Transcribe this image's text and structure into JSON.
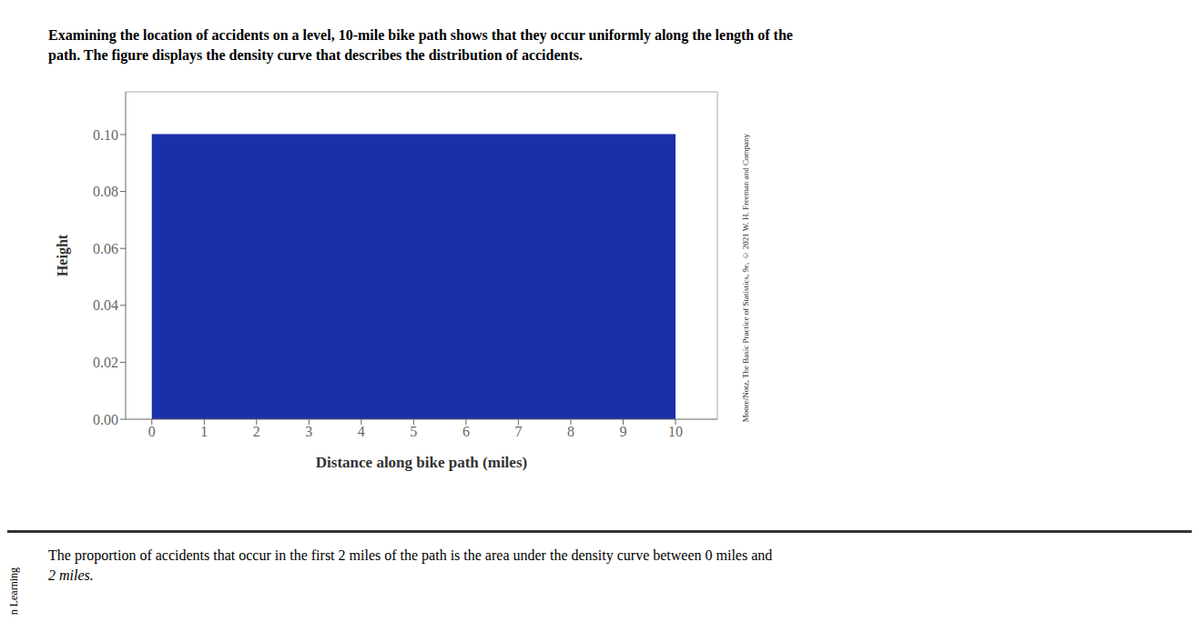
{
  "chart_data": {
    "type": "area",
    "x": [
      0,
      10
    ],
    "values": [
      0.1,
      0.1
    ],
    "color": "#1a2faa",
    "xlabel": "Distance along bike path (miles)",
    "ylabel": "Height",
    "xlim": [
      -0.5,
      10.8
    ],
    "ylim": [
      0.0,
      0.115
    ],
    "xticks": [
      0,
      1,
      2,
      3,
      4,
      5,
      6,
      7,
      8,
      9,
      10
    ],
    "yticks": [
      {
        "value": 0,
        "label": "0.00"
      },
      {
        "value": 0.02,
        "label": "0.02"
      },
      {
        "value": 0.04,
        "label": "0.04"
      },
      {
        "value": 0.06,
        "label": "0.06"
      },
      {
        "value": 0.08,
        "label": "0.08"
      },
      {
        "value": 0.1,
        "label": "0.10"
      }
    ],
    "annotations": [
      "Examining the location of accidents on a level, 10-mile bike path shows that they occur uniformly along the length of the",
      "path. The figure displays the density curve that describes the distribution of accidents.",
      "The proportion of accidents that occur in the first 2 miles of the path is the area under the density curve between 0 miles and",
      "2 miles.",
      "Moore/Notz, The Basic Practice of Statistics, 9e, © 2021 W. H. Freeman and Company",
      "n Learning"
    ]
  }
}
